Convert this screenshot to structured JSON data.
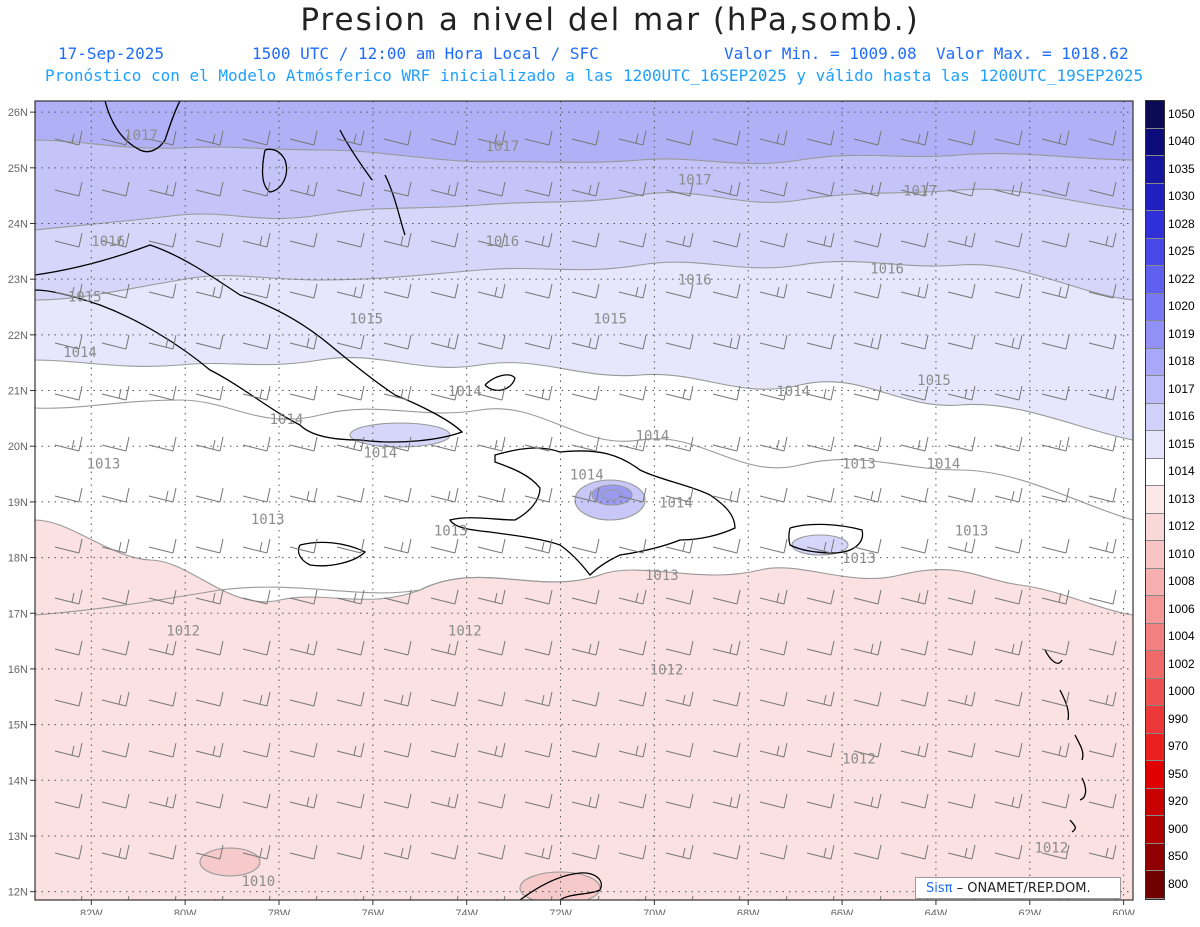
{
  "header": {
    "title": "Presion a nivel del mar (hPa,somb.)",
    "date": "17-Sep-2025",
    "time": "1500 UTC / 12:00 am Hora Local / SFC",
    "min": "Valor Min. = 1009.08",
    "max": "Valor Max. = 1018.62",
    "forecast": "Pronóstico con el Modelo Atmósferico WRF inicializado a las 1200UTC_16SEP2025 y válido hasta las  1200UTC_19SEP2025"
  },
  "colors": {
    "frame": "#333333",
    "coast": "#000000",
    "contour": "#999999",
    "grid": "#555555",
    "wind": "#777777"
  },
  "axes": {
    "lat": [
      "26N",
      "25N",
      "24N",
      "23N",
      "22N",
      "21N",
      "20N",
      "19N",
      "18N",
      "17N",
      "16N",
      "15N",
      "14N",
      "13N",
      "12N"
    ],
    "lon": [
      "82W",
      "80W",
      "78W",
      "76W",
      "74W",
      "72W",
      "70W",
      "68W",
      "66W",
      "64W",
      "62W",
      "60W"
    ]
  },
  "colorbar": {
    "labels": [
      "1050",
      "1040",
      "1035",
      "1030",
      "1028",
      "1025",
      "1022",
      "1020",
      "1019",
      "1018",
      "1017",
      "1016",
      "1015",
      "1014",
      "1013",
      "1012",
      "1010",
      "1008",
      "1006",
      "1004",
      "1002",
      "1000",
      "990",
      "970",
      "950",
      "920",
      "900",
      "850",
      "800"
    ],
    "colors": [
      "#0b0b55",
      "#0c0c7a",
      "#1515a0",
      "#2020c0",
      "#3030d8",
      "#4848e8",
      "#6060f0",
      "#7878f4",
      "#9090f6",
      "#a8a8f8",
      "#bcbcfa",
      "#d0d0fb",
      "#e4e4fd",
      "#ffffff",
      "#fce8e8",
      "#fad8d8",
      "#f8c4c4",
      "#f6b0b0",
      "#f49898",
      "#f28080",
      "#f06a6a",
      "#ee5050",
      "#ec3838",
      "#ea2020",
      "#e00000",
      "#c80000",
      "#b00000",
      "#900000",
      "#700000"
    ]
  },
  "isobars": [
    {
      "label": "1017",
      "lat": 25.5,
      "lon": -81.3
    },
    {
      "label": "1017",
      "lat": 25.3,
      "lon": -73.6
    },
    {
      "label": "1017",
      "lat": 24.7,
      "lon": -69.5
    },
    {
      "label": "1017",
      "lat": 24.5,
      "lon": -64.7
    },
    {
      "label": "1016",
      "lat": 23.6,
      "lon": -82.0
    },
    {
      "label": "1016",
      "lat": 23.6,
      "lon": -73.6
    },
    {
      "label": "1016",
      "lat": 22.9,
      "lon": -69.5
    },
    {
      "label": "1016",
      "lat": 23.1,
      "lon": -65.4
    },
    {
      "label": "1015",
      "lat": 22.6,
      "lon": -82.5
    },
    {
      "label": "1015",
      "lat": 22.2,
      "lon": -76.5
    },
    {
      "label": "1015",
      "lat": 22.2,
      "lon": -71.3
    },
    {
      "label": "1015",
      "lat": 21.1,
      "lon": -64.4
    },
    {
      "label": "1014",
      "lat": 21.6,
      "lon": -82.6
    },
    {
      "label": "1014",
      "lat": 20.9,
      "lon": -74.4
    },
    {
      "label": "1014",
      "lat": 20.4,
      "lon": -78.2
    },
    {
      "label": "1014",
      "lat": 19.8,
      "lon": -76.2
    },
    {
      "label": "1014",
      "lat": 20.1,
      "lon": -70.4
    },
    {
      "label": "1014",
      "lat": 20.9,
      "lon": -67.4
    },
    {
      "label": "1014",
      "lat": 19.4,
      "lon": -71.8
    },
    {
      "label": "1014",
      "lat": 18.9,
      "lon": -69.9
    },
    {
      "label": "1014",
      "lat": 19.6,
      "lon": -64.2
    },
    {
      "label": "1013",
      "lat": 19.6,
      "lon": -82.1
    },
    {
      "label": "1013",
      "lat": 18.6,
      "lon": -78.6
    },
    {
      "label": "1013",
      "lat": 18.4,
      "lon": -74.7
    },
    {
      "label": "1013",
      "lat": 17.6,
      "lon": -70.2
    },
    {
      "label": "1013",
      "lat": 19.6,
      "lon": -66.0
    },
    {
      "label": "1013",
      "lat": 17.9,
      "lon": -66.0
    },
    {
      "label": "1013",
      "lat": 18.4,
      "lon": -63.6
    },
    {
      "label": "1012",
      "lat": 16.6,
      "lon": -80.4
    },
    {
      "label": "1012",
      "lat": 16.6,
      "lon": -74.4
    },
    {
      "label": "1012",
      "lat": 15.9,
      "lon": -70.1
    },
    {
      "label": "1012",
      "lat": 14.3,
      "lon": -66.0
    },
    {
      "label": "1012",
      "lat": 12.7,
      "lon": -61.9
    },
    {
      "label": "1010",
      "lat": 12.1,
      "lon": -78.8
    }
  ],
  "credit": {
    "brand": "Sisπ",
    "text": "– ONAMET/REP.DOM."
  }
}
